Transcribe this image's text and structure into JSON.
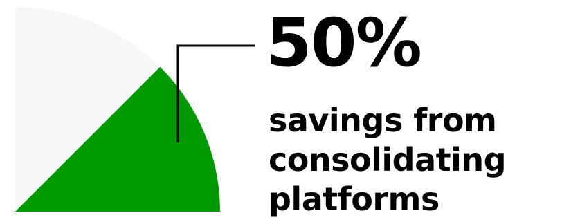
{
  "chart_data": {
    "type": "pie",
    "values": [
      50,
      50
    ],
    "colors": [
      "#009900",
      "#f7f7f7"
    ],
    "annotation_value": "50%",
    "annotation_lines": [
      "savings from",
      "consolidating",
      "platforms"
    ],
    "leader_color": "#000000"
  }
}
